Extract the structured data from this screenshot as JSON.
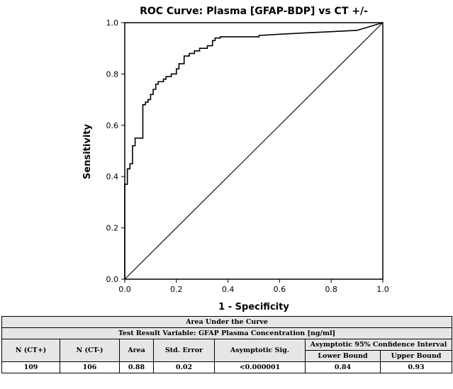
{
  "chart_data": {
    "type": "line",
    "title": "ROC Curve: Plasma [GFAP-BDP] vs CT +/-",
    "xlabel": "1 - Specificity",
    "ylabel": "Sensitivity",
    "xlim": [
      0.0,
      1.0
    ],
    "ylim": [
      0.0,
      1.0
    ],
    "xticks": [
      "0.0",
      "0.2",
      "0.4",
      "0.6",
      "0.8",
      "1.0"
    ],
    "yticks": [
      "0.0",
      "0.2",
      "0.4",
      "0.6",
      "0.8",
      "1.0"
    ],
    "grid": false,
    "series": [
      {
        "x": [
          0.0,
          0.0,
          0.01,
          0.01,
          0.02,
          0.02,
          0.03,
          0.03,
          0.04,
          0.04,
          0.05,
          0.05,
          0.07,
          0.07,
          0.08,
          0.08,
          0.09,
          0.09,
          0.1,
          0.1,
          0.11,
          0.11,
          0.12,
          0.12,
          0.13,
          0.13,
          0.15,
          0.15,
          0.16,
          0.16,
          0.18,
          0.18,
          0.2,
          0.2,
          0.21,
          0.21,
          0.23,
          0.23,
          0.25,
          0.25,
          0.27,
          0.27,
          0.29,
          0.29,
          0.32,
          0.32,
          0.34,
          0.34,
          0.35,
          0.35,
          0.37,
          0.37,
          0.4,
          0.45,
          0.52,
          0.52,
          0.6,
          0.7,
          0.8,
          0.9,
          1.0
        ],
        "y": [
          0.0,
          0.37,
          0.37,
          0.43,
          0.43,
          0.45,
          0.45,
          0.52,
          0.52,
          0.55,
          0.55,
          0.55,
          0.55,
          0.68,
          0.68,
          0.69,
          0.69,
          0.7,
          0.7,
          0.72,
          0.72,
          0.74,
          0.74,
          0.76,
          0.76,
          0.77,
          0.77,
          0.78,
          0.78,
          0.79,
          0.79,
          0.8,
          0.8,
          0.82,
          0.82,
          0.84,
          0.84,
          0.87,
          0.87,
          0.88,
          0.88,
          0.89,
          0.89,
          0.9,
          0.9,
          0.91,
          0.91,
          0.93,
          0.93,
          0.94,
          0.94,
          0.945,
          0.945,
          0.945,
          0.945,
          0.95,
          0.955,
          0.96,
          0.965,
          0.97,
          1.0
        ]
      },
      {
        "x": [
          0.0,
          1.0
        ],
        "y": [
          0.0,
          1.0
        ]
      }
    ]
  },
  "table": {
    "title": "Area Under the Curve",
    "subtitle": "Test Result Variable: GFAP Plasma Concentration [ng/ml]",
    "headers": {
      "n_pos": "N (CT+)",
      "n_neg": "N (CT-)",
      "area": "Area",
      "std_error": "Std. Error",
      "asymptotic_sig": "Asymptotic Sig.",
      "ci": "Asymptotic 95% Confidence Interval",
      "lower": "Lower Bound",
      "upper": "Upper Bound"
    },
    "row": {
      "n_pos": "109",
      "n_neg": "106",
      "area": "0.88",
      "std_error": "0.02",
      "asymptotic_sig": "<0.000001",
      "lower": "0.84",
      "upper": "0.93"
    }
  }
}
